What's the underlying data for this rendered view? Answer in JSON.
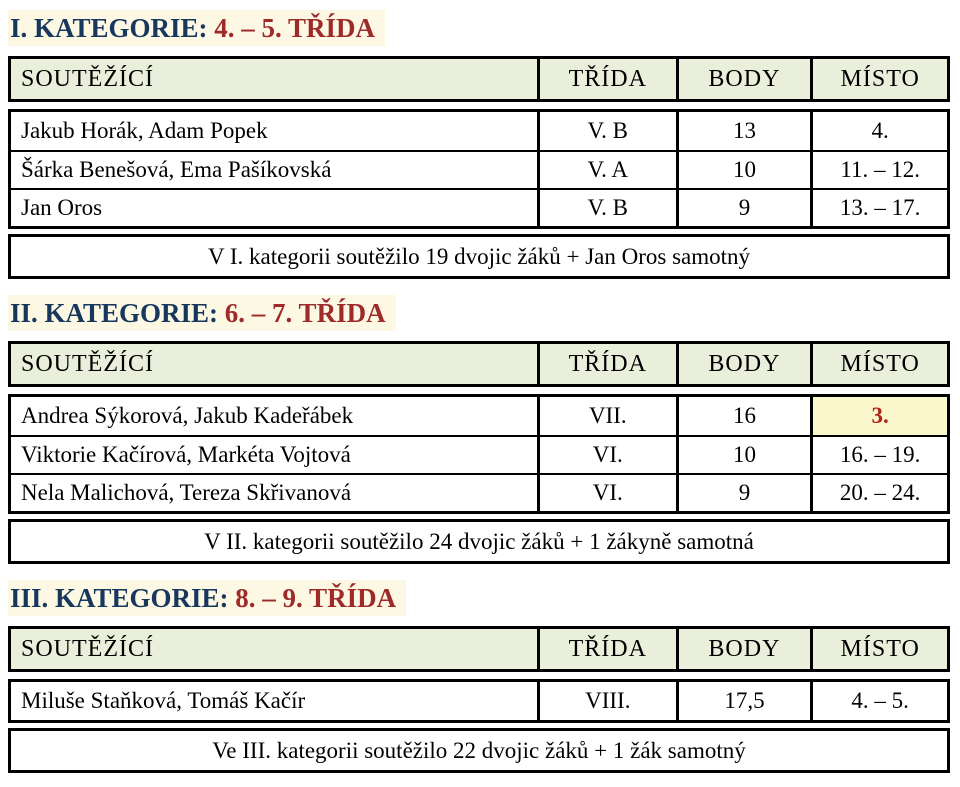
{
  "colors": {
    "title_blue": "#17375D",
    "title_red": "#9E2A2A",
    "title_highlight_bg": "#FCF8E3",
    "header_bg": "#EAEFDB",
    "medal_cell_bg": "#FBF7CD",
    "medal_text": "#B02418",
    "border": "#000000"
  },
  "columns": [
    "SOUTĚŽÍCÍ",
    "TŘÍDA",
    "BODY",
    "MÍSTO"
  ],
  "sections": [
    {
      "title": {
        "category": "I. KATEGORIE:",
        "range": "4. – 5. TŘÍDA"
      },
      "rows": [
        {
          "soutezici": "Jakub Horák, Adam Popek",
          "trida": "V. B",
          "body": "13",
          "misto": "4."
        },
        {
          "soutezici": "Šárka Benešová, Ema Pašíkovská",
          "trida": "V. A",
          "body": "10",
          "misto": "11. – 12."
        },
        {
          "soutezici": "Jan Oros",
          "trida": "V. B",
          "body": "9",
          "misto": "13. – 17."
        }
      ],
      "summary": "V I. kategorii soutěžilo 19 dvojic žáků + Jan Oros samotný"
    },
    {
      "title": {
        "category": "II. KATEGORIE:",
        "range": "6. – 7. TŘÍDA"
      },
      "rows": [
        {
          "soutezici": "Andrea Sýkorová, Jakub Kadeřábek",
          "trida": "VII.",
          "body": "16",
          "misto": "3."
        },
        {
          "soutezici": "Viktorie Kačírová, Markéta Vojtová",
          "trida": "VI.",
          "body": "10",
          "misto": "16. – 19."
        },
        {
          "soutezici": "Nela Malichová, Tereza Skřivanová",
          "trida": "VI.",
          "body": "9",
          "misto": "20. – 24."
        }
      ],
      "summary": "V II. kategorii soutěžilo 24 dvojic žáků + 1 žákyně samotná"
    },
    {
      "title": {
        "category": "III. KATEGORIE:",
        "range": "8. – 9. TŘÍDA"
      },
      "rows": [
        {
          "soutezici": "Miluše Staňková, Tomáš Kačír",
          "trida": "VIII.",
          "body": "17,5",
          "misto": "4. – 5."
        }
      ],
      "summary": "Ve III. kategorii soutěžilo 22 dvojic žáků + 1 žák samotný"
    }
  ]
}
